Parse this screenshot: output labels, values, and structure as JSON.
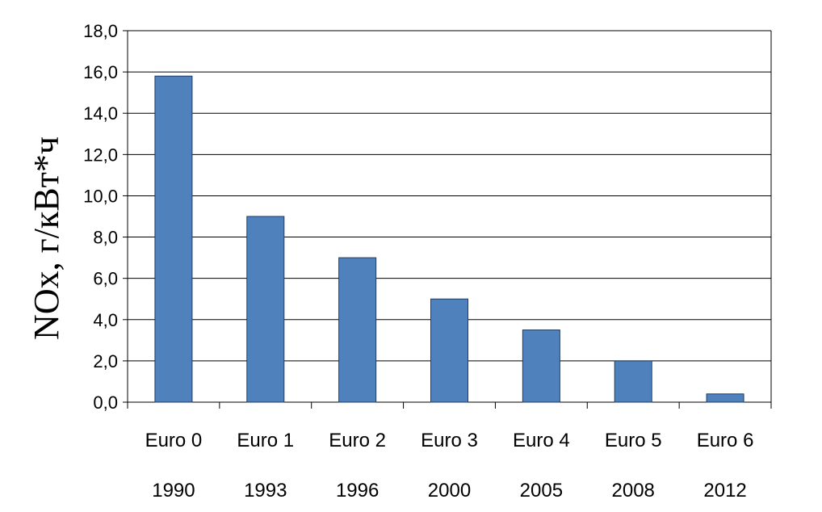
{
  "chart_data": {
    "type": "bar",
    "categories": [
      "Euro 0",
      "Euro 1",
      "Euro 2",
      "Euro 3",
      "Euro 4",
      "Euro 5",
      "Euro 6"
    ],
    "years": [
      "1990",
      "1993",
      "1996",
      "2000",
      "2005",
      "2008",
      "2012"
    ],
    "values": [
      15.8,
      9.0,
      7.0,
      5.0,
      3.5,
      2.0,
      0.4
    ],
    "ylabel": "NOx, г/кВт*ч",
    "xlabel": "",
    "title": "",
    "ylim": [
      0,
      18
    ],
    "yticks": [
      "0,0",
      "2,0",
      "4,0",
      "6,0",
      "8,0",
      "10,0",
      "12,0",
      "14,0",
      "16,0",
      "18,0"
    ],
    "grid": true,
    "bar_color": "#4f81bd",
    "bar_edge_color": "#1f3b66"
  }
}
